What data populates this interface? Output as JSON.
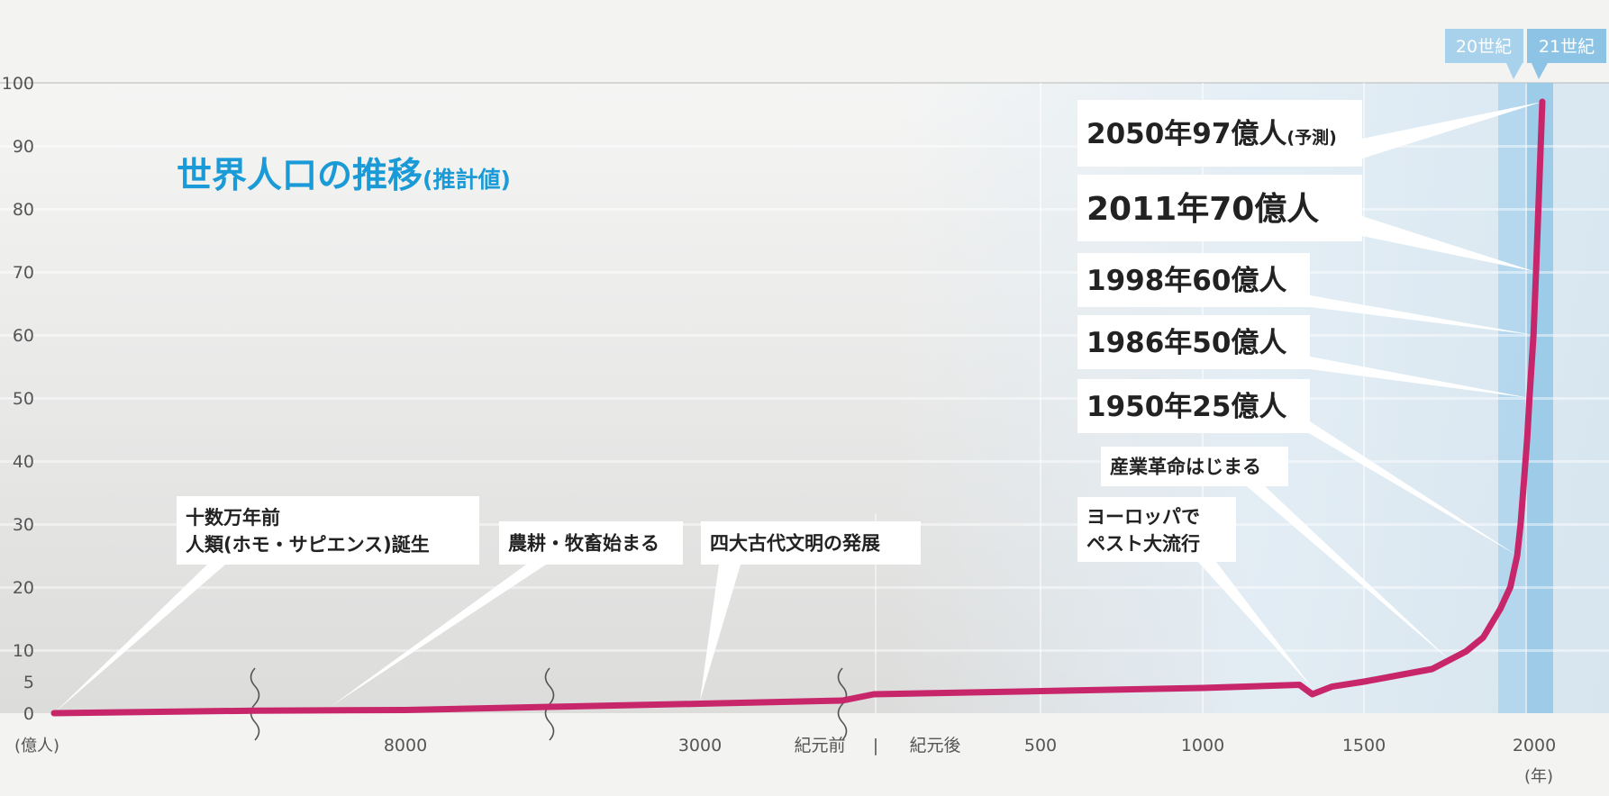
{
  "chart_data": {
    "type": "line",
    "title": "世界人口の推移",
    "title_note": "(推計値)",
    "ylabel": "(億人)",
    "xlabel": "(年)",
    "ylim": [
      0,
      100
    ],
    "y_ticks": [
      "100",
      "90",
      "80",
      "70",
      "60",
      "50",
      "40",
      "30",
      "20",
      "10",
      "5",
      "0"
    ],
    "x_ticks": [
      "8000",
      "3000",
      "紀元前",
      "|",
      "紀元後",
      "500",
      "1000",
      "1500",
      "2000"
    ],
    "eras": [
      "20世紀",
      "21世紀"
    ],
    "series": [
      {
        "color": "#c8266b",
        "points": [
          {
            "x": -100000,
            "y": 0
          },
          {
            "x": -10000,
            "y": 0.4
          },
          {
            "x": -8000,
            "y": 0.5
          },
          {
            "x": -5000,
            "y": 1.0
          },
          {
            "x": -3000,
            "y": 1.5
          },
          {
            "x": -1000,
            "y": 2.0
          },
          {
            "x": 1,
            "y": 3.0
          },
          {
            "x": 500,
            "y": 3.5
          },
          {
            "x": 1000,
            "y": 4.0
          },
          {
            "x": 1300,
            "y": 4.5
          },
          {
            "x": 1340,
            "y": 3.0
          },
          {
            "x": 1400,
            "y": 4.2
          },
          {
            "x": 1500,
            "y": 5.0
          },
          {
            "x": 1600,
            "y": 6.0
          },
          {
            "x": 1700,
            "y": 7.0
          },
          {
            "x": 1800,
            "y": 9.8
          },
          {
            "x": 1850,
            "y": 12.0
          },
          {
            "x": 1900,
            "y": 16.5
          },
          {
            "x": 1930,
            "y": 20.0
          },
          {
            "x": 1950,
            "y": 25.0
          },
          {
            "x": 1960,
            "y": 30.0
          },
          {
            "x": 1970,
            "y": 37.0
          },
          {
            "x": 1980,
            "y": 44.0
          },
          {
            "x": 1986,
            "y": 50.0
          },
          {
            "x": 1998,
            "y": 60.0
          },
          {
            "x": 2011,
            "y": 70.0
          },
          {
            "x": 2050,
            "y": 97.0
          }
        ]
      }
    ],
    "annotations": [
      {
        "key": "a2050",
        "text": "2050年97億人",
        "small": "(予測)",
        "x": 2050,
        "y": 97
      },
      {
        "key": "a2011",
        "text": "2011年70億人",
        "x": 2011,
        "y": 70
      },
      {
        "key": "a1998",
        "text": "1998年60億人",
        "x": 1998,
        "y": 60
      },
      {
        "key": "a1986",
        "text": "1986年50億人",
        "x": 1986,
        "y": 50
      },
      {
        "key": "a1950",
        "text": "1950年25億人",
        "x": 1950,
        "y": 25
      },
      {
        "key": "industrial",
        "text": "産業革命はじまる",
        "x": 1760,
        "y": 8
      },
      {
        "key": "plague",
        "text": "ヨーロッパで",
        "text2": "ペスト大流行",
        "x": 1340,
        "y": 4
      },
      {
        "key": "human",
        "text": "十数万年前",
        "text2": "人類(ホモ・サピエンス)誕生",
        "x": -100000,
        "y": 0
      },
      {
        "key": "agri",
        "text": "農耕・牧畜始まる",
        "x": -9000,
        "y": 1
      },
      {
        "key": "civ",
        "text": "四大古代文明の発展",
        "x": -3000,
        "y": 2
      }
    ],
    "colors": {
      "line": "#c8266b",
      "title": "#1a9ad6",
      "highlight": "#f08c1c",
      "era_band": "#a8d2ec",
      "era_band_dark": "#8dc4e6"
    }
  }
}
